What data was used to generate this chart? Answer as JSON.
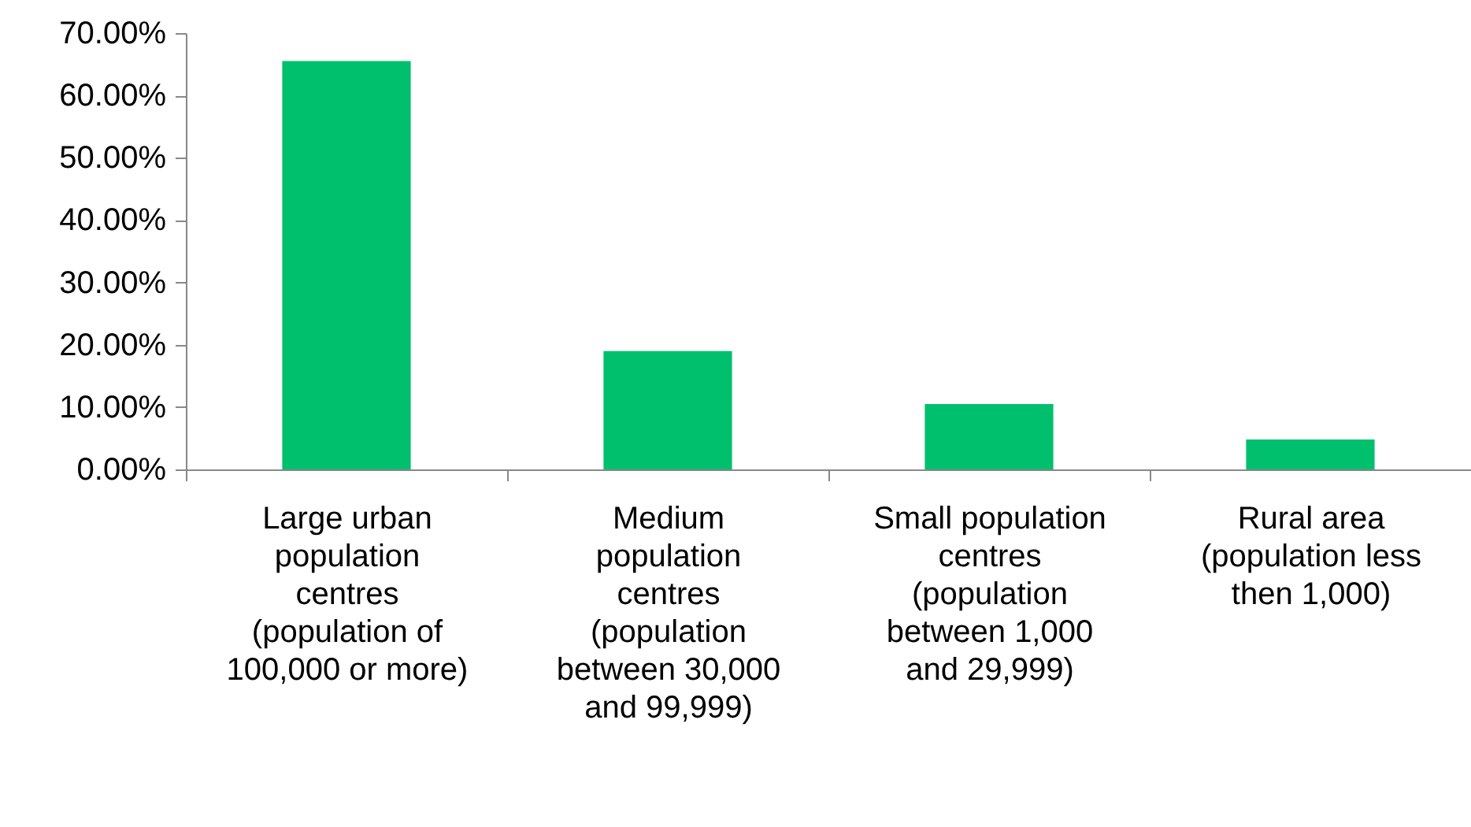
{
  "chart_data": {
    "type": "bar",
    "categories": [
      "Large urban population centres (population of 100,000 or more)",
      "Medium population centres (population between 30,000 and 99,999)",
      "Small population centres (population between 1,000 and 29,999)",
      "Rural area (population less then 1,000)"
    ],
    "values": [
      65.5,
      19.0,
      10.5,
      4.8
    ],
    "color": "#00c06e",
    "ylim": [
      0,
      70
    ],
    "yticks": [
      {
        "value": 0,
        "label": "0.00%"
      },
      {
        "value": 10,
        "label": "10.00%"
      },
      {
        "value": 20,
        "label": "20.00%"
      },
      {
        "value": 30,
        "label": "30.00%"
      },
      {
        "value": 40,
        "label": "40.00%"
      },
      {
        "value": 50,
        "label": "50.00%"
      },
      {
        "value": 60,
        "label": "60.00%"
      },
      {
        "value": 70,
        "label": "70.00%"
      }
    ],
    "grid": false
  }
}
